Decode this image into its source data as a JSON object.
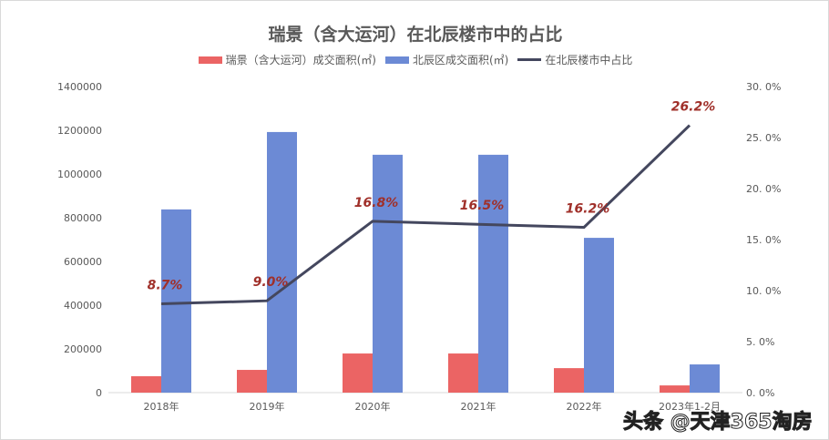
{
  "chart_data": {
    "type": "bar+line",
    "title": "瑞景（含大运河）在北辰楼市中的占比",
    "categories": [
      "2018年",
      "2019年",
      "2020年",
      "2021年",
      "2022年",
      "2023年1-2月"
    ],
    "series": [
      {
        "name": "瑞景（含大运河）成交面积(㎡)",
        "type": "bar",
        "axis": "left",
        "color": "#EB6464",
        "values": [
          75000,
          104000,
          179000,
          179000,
          112000,
          33000
        ]
      },
      {
        "name": "北辰区成交面积(㎡)",
        "type": "bar",
        "axis": "left",
        "color": "#6C8AD5",
        "values": [
          838000,
          1192000,
          1088000,
          1088000,
          708000,
          129000
        ]
      },
      {
        "name": "在北辰楼市中占比",
        "type": "line",
        "axis": "right",
        "color": "#44475E",
        "values": [
          8.7,
          9.0,
          16.8,
          16.5,
          16.2,
          26.2
        ],
        "labels": [
          "8.7%",
          "9.0%",
          "16.8%",
          "16.5%",
          "16.2%",
          "26.2%"
        ],
        "label_color": "#A0302A"
      }
    ],
    "left_axis": {
      "ylim": [
        0,
        1400000
      ],
      "ticks": [
        "0",
        "200000",
        "400000",
        "600000",
        "800000",
        "1000000",
        "1200000",
        "1400000"
      ]
    },
    "right_axis": {
      "ylim": [
        0,
        30
      ],
      "ticks": [
        "0. 0%",
        "5. 0%",
        "10. 0%",
        "15. 0%",
        "20. 0%",
        "25. 0%",
        "30. 0%"
      ]
    },
    "legend": "top",
    "grid": false
  },
  "watermark": "头条 @天津365淘房"
}
